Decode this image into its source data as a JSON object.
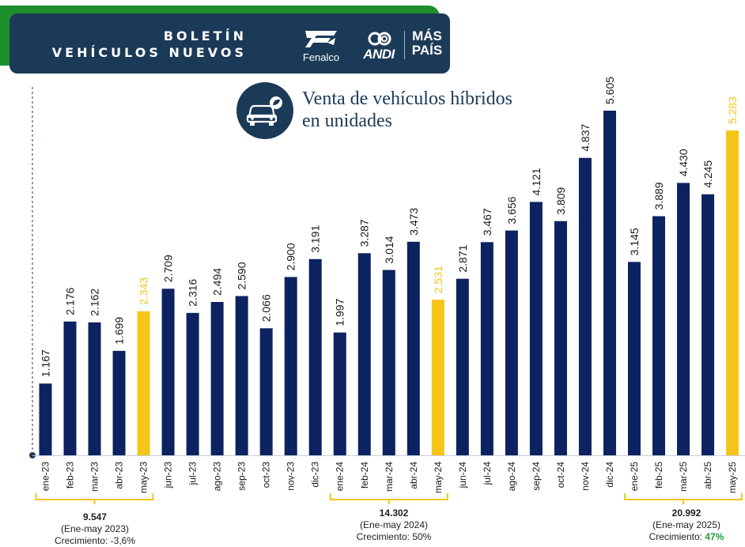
{
  "header": {
    "title_line1": "BOLETÍN",
    "title_line2": "VEHÍCULOS NUEVOS",
    "logo_fenalco": "Fenalco",
    "logo_andi": "ANDI",
    "logo_mas_1": "MÁS",
    "logo_mas_2": "PAÍS"
  },
  "title_line1": "Venta de vehículos híbridos",
  "title_line2": "en unidades",
  "colors": {
    "primary": "#0d2260",
    "highlight": "#f5c518",
    "banner": "#1b3a57",
    "green": "#1f8f2e"
  },
  "chart_data": {
    "type": "bar",
    "title": "Venta de vehículos híbridos en unidades",
    "categories": [
      "ene-23",
      "feb-23",
      "mar-23",
      "abr-23",
      "may-23",
      "jun-23",
      "jul-23",
      "ago-23",
      "sep-23",
      "oct-23",
      "nov-23",
      "dic-23",
      "ene-24",
      "feb-24",
      "mar-24",
      "abr-24",
      "may-24",
      "jun-24",
      "jul-24",
      "ago-24",
      "sep-24",
      "oct-24",
      "nov-24",
      "dic-24",
      "ene-25",
      "feb-25",
      "mar-25",
      "abr-25",
      "may-25"
    ],
    "values": [
      1167,
      2176,
      2162,
      1699,
      2343,
      2709,
      2316,
      2494,
      2590,
      2066,
      2900,
      3191,
      1997,
      3287,
      3014,
      3473,
      2531,
      2871,
      3467,
      3656,
      4121,
      3809,
      4837,
      5605,
      3145,
      3889,
      4430,
      4245,
      5283
    ],
    "value_labels": [
      "1.167",
      "2.176",
      "2.162",
      "1.699",
      "2.343",
      "2.709",
      "2.316",
      "2.494",
      "2.590",
      "2.066",
      "2.900",
      "3.191",
      "1.997",
      "3.287",
      "3.014",
      "3.473",
      "2.531",
      "2.871",
      "3.467",
      "3.656",
      "4.121",
      "3.809",
      "4.837",
      "5.605",
      "3.145",
      "3.889",
      "4.430",
      "4.245",
      "5.283"
    ],
    "highlighted": [
      "may-23",
      "may-24",
      "may-25"
    ],
    "ylim": [
      0,
      5800
    ]
  },
  "summaries": [
    {
      "total": "9.547",
      "period": "(Ene-may 2023)",
      "growth_label": "Crecimiento: ",
      "growth_value": "-3,6%"
    },
    {
      "total": "14.302",
      "period": "(Ene-may 2024)",
      "growth_label": "Crecimiento: ",
      "growth_value": "50%"
    },
    {
      "total": "20.992",
      "period": "(Ene-may 2025)",
      "growth_label": "Crecimiento: ",
      "growth_value": "47%"
    }
  ]
}
